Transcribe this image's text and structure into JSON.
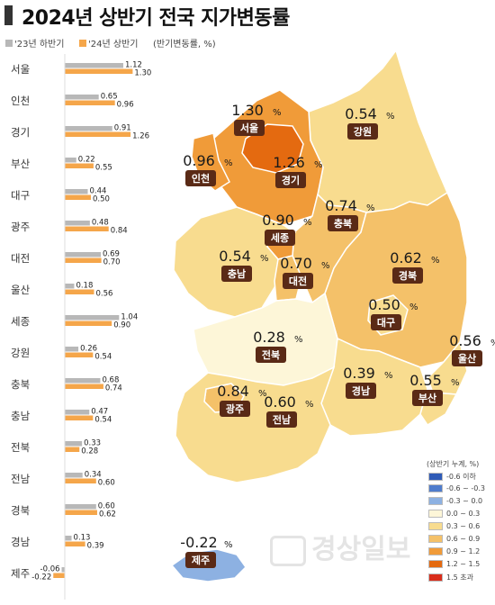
{
  "title": "2024년 상반기 전국 지가변동률",
  "legend": {
    "series1": "'23년 하반기",
    "series2": "'24년 상반기",
    "unit_note": "(반기변동률, %)"
  },
  "colors": {
    "series1": "#b8b8b8",
    "series2": "#f5a64a",
    "label_box": "#5a2a16",
    "scale": [
      "#2f5bb7",
      "#4f7ccc",
      "#8db1e2",
      "#fdf6d8",
      "#f8dc8f",
      "#f4c169",
      "#f09b39",
      "#e46a10",
      "#d92d1b"
    ]
  },
  "chart_data": {
    "type": "bar",
    "title": "2024년 상반기 전국 지가변동률",
    "unit": "(반기변동률, %)",
    "categories": [
      "서울",
      "인천",
      "경기",
      "부산",
      "대구",
      "광주",
      "대전",
      "울산",
      "세종",
      "강원",
      "충북",
      "충남",
      "전북",
      "전남",
      "경북",
      "경남",
      "제주"
    ],
    "series": [
      {
        "name": "'23년 하반기",
        "values": [
          1.12,
          0.65,
          0.91,
          0.22,
          0.44,
          0.48,
          0.69,
          0.18,
          1.04,
          0.26,
          0.68,
          0.47,
          0.33,
          0.34,
          0.6,
          0.13,
          -0.06
        ]
      },
      {
        "name": "'24년 상반기",
        "values": [
          1.3,
          0.96,
          1.26,
          0.55,
          0.5,
          0.84,
          0.7,
          0.56,
          0.9,
          0.54,
          0.74,
          0.54,
          0.28,
          0.6,
          0.62,
          0.39,
          -0.22
        ]
      }
    ],
    "value_labels_1": [
      "1.12",
      "0.65",
      "0.91",
      "0.22",
      "0.44",
      "0.48",
      "0.69",
      "0.18",
      "1.04",
      "0.26",
      "0.68",
      "0.47",
      "0.33",
      "0.34",
      "0.60",
      "0.13",
      "-0.06"
    ],
    "value_labels_2": [
      "1.30",
      "0.96",
      "1.26",
      "0.55",
      "0.50",
      "0.84",
      "0.70",
      "0.56",
      "0.90",
      "0.54",
      "0.74",
      "0.54",
      "0.28",
      "0.60",
      "0.62",
      "0.39",
      "-0.22"
    ]
  },
  "map": {
    "regions": [
      {
        "key": "seoul",
        "name": "서울",
        "value": "1.30",
        "unit": "%"
      },
      {
        "key": "incheon",
        "name": "인천",
        "value": "0.96",
        "unit": "%"
      },
      {
        "key": "gyeonggi",
        "name": "경기",
        "value": "1.26",
        "unit": "%"
      },
      {
        "key": "gangwon",
        "name": "강원",
        "value": "0.54",
        "unit": "%"
      },
      {
        "key": "chungbuk",
        "name": "충북",
        "value": "0.74",
        "unit": "%"
      },
      {
        "key": "sejong",
        "name": "세종",
        "value": "0.90",
        "unit": "%"
      },
      {
        "key": "chungnam",
        "name": "충남",
        "value": "0.54",
        "unit": "%"
      },
      {
        "key": "daejeon",
        "name": "대전",
        "value": "0.70",
        "unit": "%"
      },
      {
        "key": "gyeongbuk",
        "name": "경북",
        "value": "0.62",
        "unit": "%"
      },
      {
        "key": "daegu",
        "name": "대구",
        "value": "0.50",
        "unit": "%"
      },
      {
        "key": "jeonbuk",
        "name": "전북",
        "value": "0.28",
        "unit": "%"
      },
      {
        "key": "ulsan",
        "name": "울산",
        "value": "0.56",
        "unit": "%"
      },
      {
        "key": "gwangju",
        "name": "광주",
        "value": "0.84",
        "unit": "%"
      },
      {
        "key": "jeonnam",
        "name": "전남",
        "value": "0.60",
        "unit": "%"
      },
      {
        "key": "gyeongnam",
        "name": "경남",
        "value": "0.39",
        "unit": "%"
      },
      {
        "key": "busan",
        "name": "부산",
        "value": "0.55",
        "unit": "%"
      },
      {
        "key": "jeju",
        "name": "제주",
        "value": "-0.22",
        "unit": "%"
      }
    ]
  },
  "scale_legend": {
    "title": "(상반기 누계, %)",
    "items": [
      "-0.6 이하",
      "-0.6 ~ -0.3",
      "-0.3 ~ 0.0",
      "0.0 ~ 0.3",
      "0.3 ~ 0.6",
      "0.6 ~ 0.9",
      "0.9 ~ 1.2",
      "1.2 ~ 1.5",
      "1.5 초과"
    ]
  },
  "watermark": "경상일보"
}
